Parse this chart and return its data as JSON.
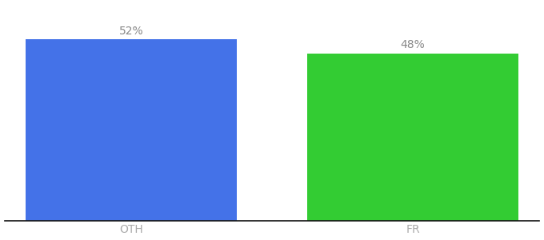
{
  "categories": [
    "OTH",
    "FR"
  ],
  "values": [
    52,
    48
  ],
  "bar_colors": [
    "#4472e8",
    "#33cc33"
  ],
  "label_texts": [
    "52%",
    "48%"
  ],
  "label_color": "#888888",
  "ylabel": "",
  "ylim": [
    0,
    62
  ],
  "background_color": "#ffffff",
  "tick_color": "#aaaaaa",
  "bar_width": 0.75,
  "label_fontsize": 10,
  "tick_fontsize": 10,
  "xlim": [
    -0.45,
    1.45
  ]
}
